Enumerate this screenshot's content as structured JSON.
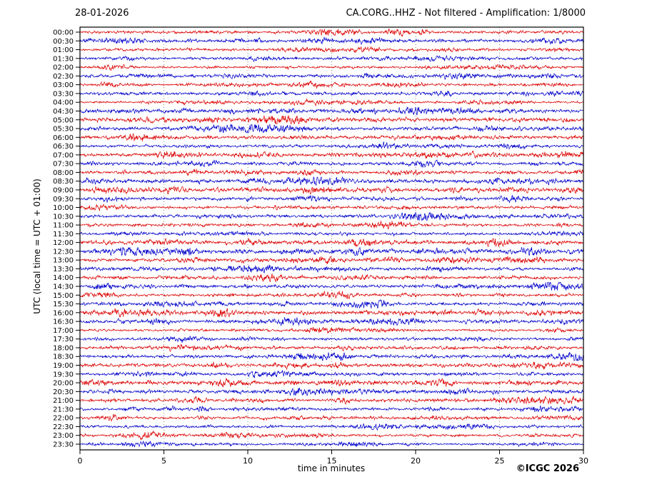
{
  "header": {
    "date": "28-01-2026",
    "title": "CA.CORG..HHZ - Not filtered - Amplification: 1/8000"
  },
  "footer": {
    "copyright": "©ICGC 2026"
  },
  "chart_data": {
    "type": "line",
    "subtype": "helicorder-seismogram",
    "title": "CA.CORG..HHZ - Not filtered - Amplification: 1/8000",
    "date": "28-01-2026",
    "xlabel": "time in minutes",
    "ylabel": "UTC (local time = UTC + 01:00)",
    "xlim": [
      0,
      30
    ],
    "x_ticks": [
      0,
      5,
      10,
      15,
      20,
      25,
      30
    ],
    "grid": "vertical dotted gridlines at 5-minute intervals",
    "grid_color": "#8a8a8a",
    "frame_color": "#000000",
    "row_minutes": 30,
    "colors": {
      "even_rows": "#dd0000",
      "odd_rows": "#0000cc"
    },
    "rows": [
      {
        "label": "00:00",
        "color": "#dd0000",
        "amplitude": 1.2
      },
      {
        "label": "00:30",
        "color": "#0000cc",
        "amplitude": 1.5
      },
      {
        "label": "01:00",
        "color": "#dd0000",
        "amplitude": 1.1
      },
      {
        "label": "01:30",
        "color": "#0000cc",
        "amplitude": 1.2
      },
      {
        "label": "02:00",
        "color": "#dd0000",
        "amplitude": 1.0
      },
      {
        "label": "02:30",
        "color": "#0000cc",
        "amplitude": 1.4
      },
      {
        "label": "03:00",
        "color": "#dd0000",
        "amplitude": 1.2
      },
      {
        "label": "03:30",
        "color": "#0000cc",
        "amplitude": 1.5
      },
      {
        "label": "04:00",
        "color": "#dd0000",
        "amplitude": 1.0
      },
      {
        "label": "04:30",
        "color": "#0000cc",
        "amplitude": 1.7
      },
      {
        "label": "05:00",
        "color": "#dd0000",
        "amplitude": 1.9
      },
      {
        "label": "05:30",
        "color": "#0000cc",
        "amplitude": 1.6
      },
      {
        "label": "06:00",
        "color": "#dd0000",
        "amplitude": 1.4
      },
      {
        "label": "06:30",
        "color": "#0000cc",
        "amplitude": 1.2
      },
      {
        "label": "07:00",
        "color": "#dd0000",
        "amplitude": 1.6
      },
      {
        "label": "07:30",
        "color": "#0000cc",
        "amplitude": 1.3
      },
      {
        "label": "08:00",
        "color": "#dd0000",
        "amplitude": 1.3
      },
      {
        "label": "08:30",
        "color": "#0000cc",
        "amplitude": 1.8
      },
      {
        "label": "09:00",
        "color": "#dd0000",
        "amplitude": 1.9
      },
      {
        "label": "09:30",
        "color": "#0000cc",
        "amplitude": 1.5
      },
      {
        "label": "10:00",
        "color": "#dd0000",
        "amplitude": 1.2
      },
      {
        "label": "10:30",
        "color": "#0000cc",
        "amplitude": 1.3
      },
      {
        "label": "11:00",
        "color": "#dd0000",
        "amplitude": 1.3
      },
      {
        "label": "11:30",
        "color": "#0000cc",
        "amplitude": 1.2
      },
      {
        "label": "12:00",
        "color": "#dd0000",
        "amplitude": 1.8
      },
      {
        "label": "12:30",
        "color": "#0000cc",
        "amplitude": 1.9
      },
      {
        "label": "13:00",
        "color": "#dd0000",
        "amplitude": 1.6
      },
      {
        "label": "13:30",
        "color": "#0000cc",
        "amplitude": 1.3
      },
      {
        "label": "14:00",
        "color": "#dd0000",
        "amplitude": 1.3
      },
      {
        "label": "14:30",
        "color": "#0000cc",
        "amplitude": 1.4
      },
      {
        "label": "15:00",
        "color": "#dd0000",
        "amplitude": 1.3
      },
      {
        "label": "15:30",
        "color": "#0000cc",
        "amplitude": 1.5
      },
      {
        "label": "16:00",
        "color": "#dd0000",
        "amplitude": 1.7
      },
      {
        "label": "16:30",
        "color": "#0000cc",
        "amplitude": 1.6
      },
      {
        "label": "17:00",
        "color": "#dd0000",
        "amplitude": 1.1
      },
      {
        "label": "17:30",
        "color": "#0000cc",
        "amplitude": 1.2
      },
      {
        "label": "18:00",
        "color": "#dd0000",
        "amplitude": 1.3
      },
      {
        "label": "18:30",
        "color": "#0000cc",
        "amplitude": 1.5
      },
      {
        "label": "19:00",
        "color": "#dd0000",
        "amplitude": 1.7
      },
      {
        "label": "19:30",
        "color": "#0000cc",
        "amplitude": 1.3
      },
      {
        "label": "20:00",
        "color": "#dd0000",
        "amplitude": 1.8
      },
      {
        "label": "20:30",
        "color": "#0000cc",
        "amplitude": 1.5
      },
      {
        "label": "21:00",
        "color": "#dd0000",
        "amplitude": 1.3
      },
      {
        "label": "21:30",
        "color": "#0000cc",
        "amplitude": 1.3
      },
      {
        "label": "22:00",
        "color": "#dd0000",
        "amplitude": 1.3
      },
      {
        "label": "22:30",
        "color": "#0000cc",
        "amplitude": 1.2
      },
      {
        "label": "23:00",
        "color": "#dd0000",
        "amplitude": 1.1
      },
      {
        "label": "23:30",
        "color": "#0000cc",
        "amplitude": 1.0
      }
    ]
  }
}
